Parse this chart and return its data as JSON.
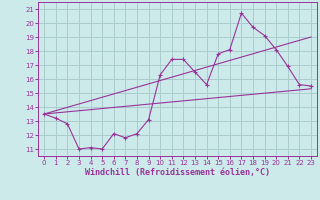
{
  "xlabel": "Windchill (Refroidissement éolien,°C)",
  "bg_color": "#cceaea",
  "grid_color": "#aacccc",
  "line_color": "#993399",
  "xlim": [
    -0.5,
    23.5
  ],
  "ylim": [
    10.5,
    21.5
  ],
  "xticks": [
    0,
    1,
    2,
    3,
    4,
    5,
    6,
    7,
    8,
    9,
    10,
    11,
    12,
    13,
    14,
    15,
    16,
    17,
    18,
    19,
    20,
    21,
    22,
    23
  ],
  "yticks": [
    11,
    12,
    13,
    14,
    15,
    16,
    17,
    18,
    19,
    20,
    21
  ],
  "line1_x": [
    0,
    1,
    2,
    3,
    4,
    5,
    6,
    7,
    8,
    9,
    10,
    11,
    12,
    13,
    14,
    15,
    16,
    17,
    18,
    19,
    20,
    21,
    22,
    23
  ],
  "line1_y": [
    13.5,
    13.2,
    12.8,
    11.0,
    11.1,
    11.0,
    12.1,
    11.8,
    12.1,
    13.1,
    16.3,
    17.4,
    17.4,
    16.5,
    15.6,
    17.8,
    18.1,
    20.7,
    19.7,
    19.1,
    18.1,
    16.9,
    15.6,
    15.5
  ],
  "line2_x": [
    0,
    23
  ],
  "line2_y": [
    13.5,
    15.3
  ],
  "line3_x": [
    0,
    23
  ],
  "line3_y": [
    13.5,
    19.0
  ],
  "tick_fontsize": 5.0,
  "xlabel_fontsize": 6.0
}
